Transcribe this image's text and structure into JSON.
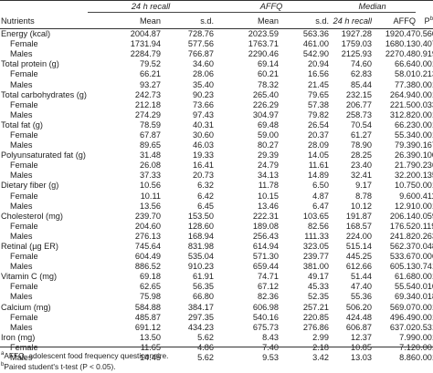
{
  "headers": {
    "nutrients": "Nutrients",
    "group_24h": "24 h recall",
    "group_affq": "AFFQ",
    "group_median": "Median",
    "mean": "Mean",
    "sd": "s.d.",
    "mean2": "Mean",
    "sd2": "s.d.",
    "median_24h": "24 h recall",
    "median_affq": "AFFQ",
    "p": "P",
    "p_sup": "b"
  },
  "rows": [
    {
      "label": "Energy (kcal)",
      "indent": false,
      "v": [
        "2004.87",
        "728.76",
        "2023.59",
        "563.36",
        "1927.28",
        "1920.47",
        "0.560"
      ]
    },
    {
      "label": "Female",
      "indent": true,
      "v": [
        "1731.94",
        "577.56",
        "1763.71",
        "461.00",
        "1759.03",
        "1680.13",
        "0.407"
      ]
    },
    {
      "label": "Males",
      "indent": true,
      "v": [
        "2284.79",
        "766.87",
        "2290.46",
        "542.90",
        "2125.93",
        "2270.48",
        "0.919"
      ]
    },
    {
      "label": "Total protein (g)",
      "indent": false,
      "v": [
        "79.52",
        "34.60",
        "69.14",
        "20.94",
        "74.60",
        "66.64",
        "0.001"
      ]
    },
    {
      "label": "Female",
      "indent": true,
      "v": [
        "66.21",
        "28.06",
        "60.21",
        "16.56",
        "62.83",
        "58.01",
        "0.213"
      ]
    },
    {
      "label": "Males",
      "indent": true,
      "v": [
        "93.27",
        "35.40",
        "78.32",
        "21.45",
        "85.44",
        "77.38",
        "0.001"
      ]
    },
    {
      "label": "Total carbohydrates (g)",
      "indent": false,
      "v": [
        "242.73",
        "90.23",
        "265.40",
        "79.65",
        "232.15",
        "264.94",
        "0.001"
      ]
    },
    {
      "label": "Female",
      "indent": true,
      "v": [
        "212.18",
        "73.66",
        "226.29",
        "57.38",
        "206.77",
        "221.50",
        "0.033"
      ]
    },
    {
      "label": "Males",
      "indent": true,
      "v": [
        "274.29",
        "97.43",
        "304.97",
        "79.82",
        "258.73",
        "312.82",
        "0.001"
      ]
    },
    {
      "label": "Total fat (g)",
      "indent": false,
      "v": [
        "78.59",
        "40.31",
        "69.48",
        "26.54",
        "70.54",
        "66.23",
        "0.001"
      ]
    },
    {
      "label": "Female",
      "indent": true,
      "v": [
        "67.87",
        "30.60",
        "59.00",
        "20.37",
        "61.27",
        "55.34",
        "0.001"
      ]
    },
    {
      "label": "Males",
      "indent": true,
      "v": [
        "89.65",
        "46.03",
        "80.27",
        "28.09",
        "78.90",
        "79.39",
        "0.167"
      ]
    },
    {
      "label": "Polyunsaturated fat (g)",
      "indent": false,
      "v": [
        "31.48",
        "19.33",
        "29.39",
        "14.05",
        "28.25",
        "26.39",
        "0.100"
      ]
    },
    {
      "label": "Female",
      "indent": true,
      "v": [
        "26.08",
        "16.41",
        "24.79",
        "11.61",
        "23.40",
        "21.79",
        "0.236"
      ]
    },
    {
      "label": "Males",
      "indent": true,
      "v": [
        "37.33",
        "20.73",
        "34.13",
        "14.89",
        "32.41",
        "32.20",
        "0.135"
      ]
    },
    {
      "label": "Dietary fiber (g)",
      "indent": false,
      "v": [
        "10.56",
        "6.32",
        "11.78",
        "6.50",
        "9.17",
        "10.75",
        "0.001"
      ]
    },
    {
      "label": "Female",
      "indent": true,
      "v": [
        "10.11",
        "6.42",
        "10.15",
        "4.87",
        "8.78",
        "9.60",
        "0.411"
      ]
    },
    {
      "label": "Males",
      "indent": true,
      "v": [
        "13.56",
        "6.45",
        "13.46",
        "6.47",
        "10.12",
        "12.91",
        "0.001"
      ]
    },
    {
      "label": "Cholesterol (mg)",
      "indent": false,
      "v": [
        "239.70",
        "153.50",
        "222.31",
        "103.65",
        "191.87",
        "206.14",
        "0.059"
      ]
    },
    {
      "label": "Female",
      "indent": true,
      "v": [
        "204.60",
        "128.60",
        "189.08",
        "82.56",
        "168.57",
        "176.52",
        "0.119"
      ]
    },
    {
      "label": "Males",
      "indent": true,
      "v": [
        "276.13",
        "168.94",
        "256.43",
        "111.33",
        "224.00",
        "241.82",
        "0.263"
      ]
    },
    {
      "label": "Retinal (µg ER)",
      "indent": false,
      "v": [
        "745.64",
        "831.98",
        "614.94",
        "323.05",
        "515.14",
        "562.37",
        "0.048"
      ]
    },
    {
      "label": "Female",
      "indent": true,
      "v": [
        "604.49",
        "535.04",
        "571.30",
        "239.77",
        "445.25",
        "533.67",
        "0.006"
      ]
    },
    {
      "label": "Males",
      "indent": true,
      "v": [
        "886.52",
        "910.23",
        "659.44",
        "381.00",
        "612.66",
        "605.13",
        "0.741"
      ]
    },
    {
      "label": "Vitamin C (mg)",
      "indent": false,
      "v": [
        "69.18",
        "61.91",
        "74.71",
        "49.17",
        "51.44",
        "61.68",
        "0.001"
      ]
    },
    {
      "label": "Female",
      "indent": true,
      "v": [
        "62.65",
        "56.35",
        "67.12",
        "45.33",
        "47.40",
        "55.54",
        "0.010"
      ]
    },
    {
      "label": "Males",
      "indent": true,
      "v": [
        "75.98",
        "66.80",
        "82.36",
        "52.35",
        "55.36",
        "69.34",
        "0.018"
      ]
    },
    {
      "label": "Calcium (mg)",
      "indent": false,
      "v": [
        "584.88",
        "384.17",
        "606.98",
        "257.21",
        "506.20",
        "569.07",
        "0.001"
      ]
    },
    {
      "label": "Female",
      "indent": true,
      "v": [
        "485.87",
        "297.35",
        "540.16",
        "220.85",
        "424.48",
        "496.49",
        "0.001"
      ]
    },
    {
      "label": "Males",
      "indent": true,
      "v": [
        "691.12",
        "434.23",
        "675.73",
        "276.86",
        "606.87",
        "637.02",
        "0.531"
      ]
    },
    {
      "label": "Iron (mg)",
      "indent": false,
      "v": [
        "13.50",
        "5.62",
        "8.43",
        "2.99",
        "12.37",
        "7.99",
        "0.001"
      ]
    },
    {
      "label": "Female",
      "indent": true,
      "v": [
        "11.65",
        "4.86",
        "7.40",
        "2.18",
        "10.85",
        "7.12",
        "0.001"
      ]
    },
    {
      "label": "Males",
      "indent": true,
      "v": [
        "14.45",
        "5.62",
        "9.53",
        "3.42",
        "13.03",
        "8.86",
        "0.001"
      ]
    }
  ],
  "footnotes": {
    "a_sup": "a",
    "a_text": "AFFQ, adolescent food frequency questionnaire.",
    "b_sup": "b",
    "b_text": "Paired student's t-test (P < 0.05)."
  }
}
